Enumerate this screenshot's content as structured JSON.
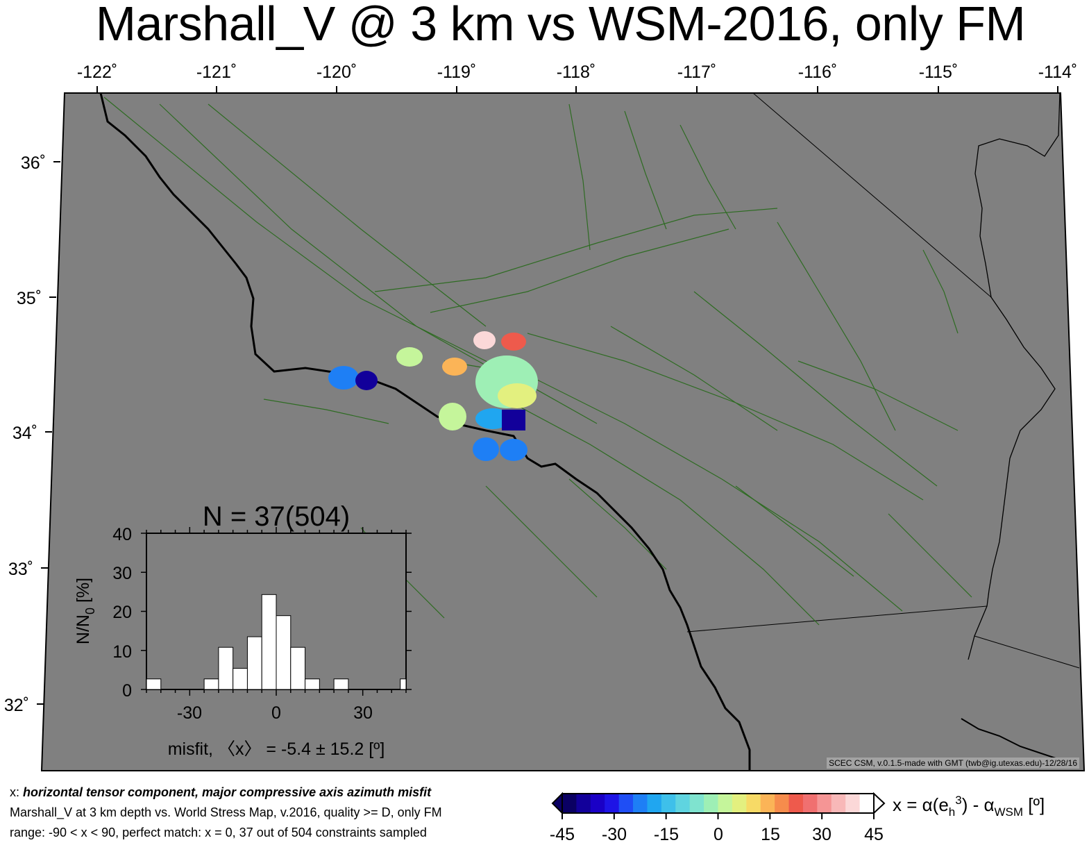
{
  "title": "Marshall_V @ 3 km vs WSM-2016, only FM",
  "map": {
    "lon_labels": [
      "-122˚",
      "-121˚",
      "-120˚",
      "-119˚",
      "-118˚",
      "-117˚",
      "-116˚",
      "-115˚",
      "-114˚"
    ],
    "lat_labels": [
      "36˚",
      "35˚",
      "34˚",
      "33˚",
      "32˚"
    ],
    "background_color": "#808080",
    "fault_color": "#2e6b22",
    "coast_color": "#000000"
  },
  "histogram": {
    "title": "N = 37(504)",
    "ylabel": "N/N0 [%]",
    "ylabel_main": "N/N",
    "ylabel_sub": "0",
    "ylabel_tail": " [%]",
    "xlabel": "misfit, 〈x〉 = -5.4 ± 15.2 [º]",
    "yticks": [
      "40",
      "30",
      "20",
      "10",
      "0"
    ],
    "xticks": [
      "-30",
      "0",
      "30"
    ]
  },
  "chart_data": {
    "type": "bar",
    "title": "N = 37(504)",
    "xlabel": "misfit, 〈x〉 = -5.4 ± 15.2 [º]",
    "ylabel": "N/N0 [%]",
    "xlim": [
      -45,
      45
    ],
    "ylim": [
      0,
      40
    ],
    "bin_width": 5,
    "bin_edges": [
      -45,
      -40,
      -35,
      -30,
      -25,
      -20,
      -15,
      -10,
      -5,
      0,
      5,
      10,
      15,
      20,
      25,
      30,
      35,
      40,
      45
    ],
    "values": [
      2.7,
      0,
      0,
      0,
      2.7,
      10.8,
      5.4,
      13.5,
      24.3,
      18.9,
      10.8,
      2.7,
      0,
      2.7,
      0,
      0,
      0,
      0
    ],
    "partial_bar": {
      "x_from": 43,
      "x_to": 45,
      "value": 2.7
    }
  },
  "colorbar": {
    "ticks": [
      "-45",
      "-30",
      "-15",
      "0",
      "15",
      "30",
      "45"
    ],
    "label_main": "x = α(e",
    "label_sub1": "h",
    "label_sup": "3",
    "label_mid": ") - α",
    "label_sub2": "WSM",
    "label_end": " [º]",
    "colors": [
      "#0a0063",
      "#12009a",
      "#1a00c6",
      "#1e14e6",
      "#1f4ef5",
      "#1e7ff5",
      "#20a6f0",
      "#3ec0ea",
      "#5fd4e0",
      "#7fe3cf",
      "#9eefb5",
      "#c5f59b",
      "#e3f07f",
      "#f7da66",
      "#fbb457",
      "#f68c4c",
      "#ee5a4c",
      "#f07070",
      "#f59595",
      "#f8b8b8",
      "#fbd8d8",
      "#ffffff"
    ]
  },
  "captions": {
    "line1_prefix": "x: ",
    "line1_emph": "horizontal tensor component, major compressive axis azimuth misfit",
    "line2": "Marshall_V at 3 km depth vs.  World Stress Map, v.2016, quality >= D, only FM",
    "line3": "range: -90 < x < 90, perfect match: x = 0, 37 out of 504 constraints sampled"
  },
  "credit": "SCEC CSM, v.0.1.5-made with GMT (twb@ig.utexas.edu)-12/28/16"
}
